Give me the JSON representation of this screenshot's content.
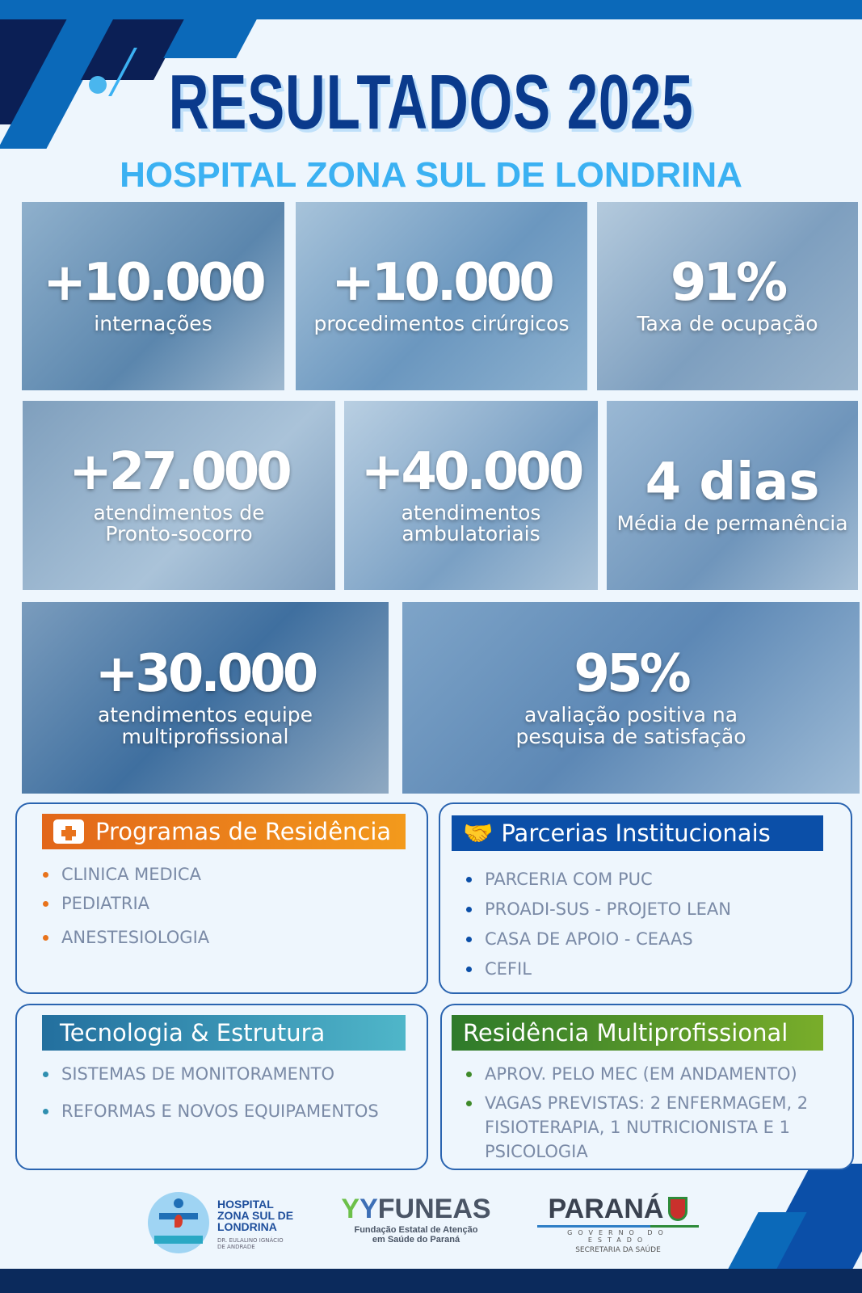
{
  "header": {
    "title": "RESULTADOS 2025",
    "subtitle": "HOSPITAL ZONA SUL DE LONDRINA"
  },
  "stats": [
    {
      "value": "+10.000",
      "label": "internações"
    },
    {
      "value": "+10.000",
      "label": "procedimentos cirúrgicos"
    },
    {
      "value": "91%",
      "label": "Taxa de ocupação"
    },
    {
      "value": "+27.000",
      "label": "atendimentos de Pronto-socorro"
    },
    {
      "value": "+40.000",
      "label": "atendimentos ambulatoriais"
    },
    {
      "value": "4 dias",
      "label": "Média de permanência"
    },
    {
      "value": "+30.000",
      "label": "atendimentos equipe multiprofissional"
    },
    {
      "value": "95%",
      "label": "avaliação positiva na pesquisa de satisfação"
    }
  ],
  "sections": [
    {
      "title": "Programas de Residência",
      "icon": "medical-kit-icon",
      "color": "#e8731c",
      "items": [
        "CLINICA MEDICA",
        "PEDIATRIA",
        "ANESTESIOLOGIA"
      ]
    },
    {
      "title": "Parcerias Institucionais",
      "icon": "handshake-icon",
      "color": "#0b4fa8",
      "items": [
        "PARCERIA COM PUC",
        "PROADI-SUS - PROJETO LEAN",
        "CASA DE APOIO - CEAAS",
        "CEFIL"
      ]
    },
    {
      "title": "Tecnologia & Estrutura",
      "color": "#2f8fb0",
      "items": [
        "SISTEMAS DE MONITORAMENTO",
        "REFORMAS E NOVOS EQUIPAMENTOS"
      ]
    },
    {
      "title": "Residência Multiprofissional",
      "color": "#3f8a2a",
      "items": [
        "APROV. PELO MEC (EM ANDAMENTO)",
        "VAGAS PREVISTAS:  2 ENFERMAGEM, 2 FISIOTERAPIA, 1 NUTRICIONISTA E 1 PSICOLOGIA"
      ]
    }
  ],
  "logos": {
    "hospital": {
      "name": "HOSPITAL ZONA SUL DE LONDRINA",
      "sub": "DR. EULALINO IGNÁCIO DE ANDRADE"
    },
    "funeas": {
      "name": "FUNEAS",
      "sub": "Fundação Estatal de Atenção em Saúde do Paraná"
    },
    "parana": {
      "name": "PARANÁ",
      "gov": "GOVERNO DO ESTADO",
      "sub": "SECRETARIA DA SAÚDE"
    }
  }
}
